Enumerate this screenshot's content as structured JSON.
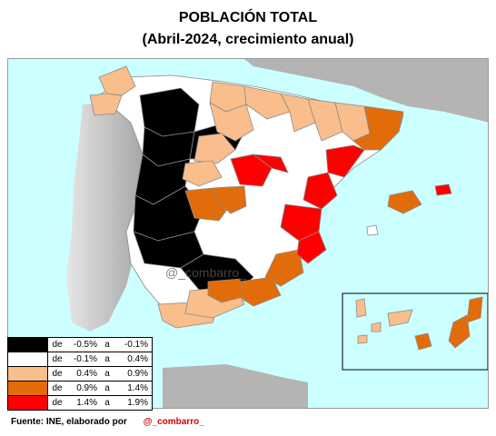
{
  "title_line1": "POBLACIÓN TOTAL",
  "title_line2": "(Abril-2024, crecimiento anual)",
  "colors": {
    "sea": "#ccffff",
    "portugal": "#c8c8c8",
    "france_africa": "#b4b4b4",
    "border": "#8a8a8a",
    "class_1": "#000000",
    "class_2": "#ffffff",
    "class_3": "#f9be8c",
    "class_4": "#e36c0a",
    "class_5": "#ff0000"
  },
  "legend": [
    {
      "de": "de",
      "from": "-0.5%",
      "a": "a",
      "to": "-0.1%",
      "color": "#000000"
    },
    {
      "de": "de",
      "from": "-0.1%",
      "a": "a",
      "to": "0.4%",
      "color": "#ffffff"
    },
    {
      "de": "de",
      "from": "0.4%",
      "a": "a",
      "to": "0.9%",
      "color": "#f9be8c"
    },
    {
      "de": "de",
      "from": "0.9%",
      "a": "a",
      "to": "1.4%",
      "color": "#e36c0a"
    },
    {
      "de": "de",
      "from": "1.4%",
      "a": "a",
      "to": "1.9%",
      "color": "#ff0000"
    }
  ],
  "watermark": "@_combarro_",
  "footer": {
    "source": "Fuente: INE, elaborado por",
    "handle": "@_combarro_"
  }
}
